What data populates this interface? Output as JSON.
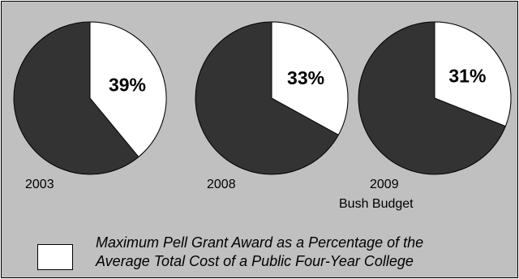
{
  "chart_data": {
    "type": "pie",
    "colors": {
      "share": "#ffffff",
      "remainder": "#333333",
      "background": "#c0c0c0"
    },
    "pies": [
      {
        "year": "2003",
        "subtitle": "",
        "value": 39,
        "label": "39%"
      },
      {
        "year": "2008",
        "subtitle": "",
        "value": 33,
        "label": "33%"
      },
      {
        "year": "2009",
        "subtitle": "Bush Budget",
        "value": 31,
        "label": "31%"
      }
    ],
    "legend": {
      "line1": "Maximum Pell Grant Award as a Percentage of the",
      "line2": "Average Total Cost of a Public Four-Year College"
    }
  }
}
